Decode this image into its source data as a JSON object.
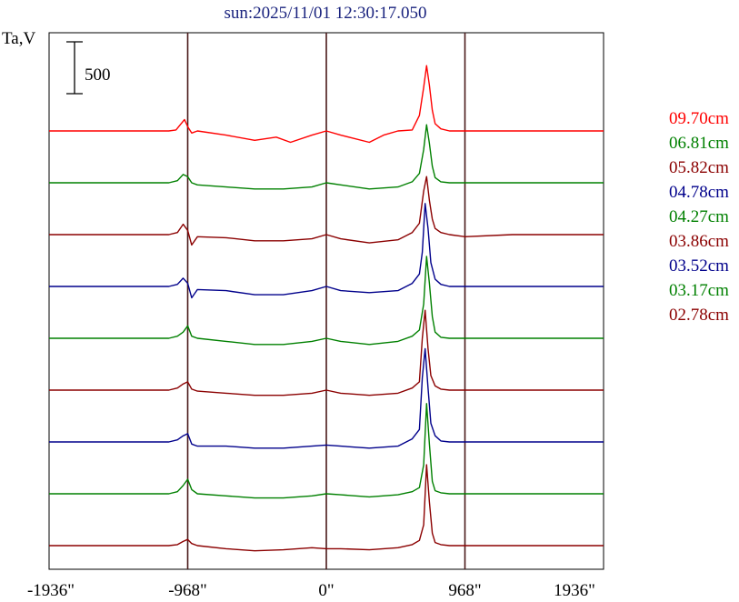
{
  "chart_data": {
    "type": "line",
    "title": "sun:2025/11/01 12:30:17.050",
    "ylabel": "Ta,V",
    "scale_bar_label": "500",
    "scale_bar_value": 500,
    "xlim": [
      -1936,
      1936
    ],
    "x_ticks": [
      {
        "value": -1936,
        "label": "-1936\""
      },
      {
        "value": -968,
        "label": "-968\""
      },
      {
        "value": 0,
        "label": "0\""
      },
      {
        "value": 968,
        "label": "968\""
      },
      {
        "value": 1936,
        "label": "1936\""
      }
    ],
    "vertical_lines": [
      -968,
      0,
      968
    ],
    "grid": false,
    "legend_position": "right",
    "series": [
      {
        "name": "09.70cm",
        "color": "#ff0000",
        "offset": 4000,
        "x": [
          -1936,
          -1100,
          -1050,
          -1020,
          -990,
          -968,
          -940,
          -900,
          -700,
          -500,
          -350,
          -250,
          -100,
          0,
          100,
          300,
          400,
          500,
          600,
          650,
          680,
          700,
          720,
          740,
          760,
          800,
          860,
          968,
          1300,
          1936
        ],
        "y": [
          0,
          0,
          10,
          60,
          110,
          40,
          -20,
          0,
          -40,
          -90,
          -60,
          -110,
          -40,
          0,
          -40,
          -110,
          -40,
          0,
          10,
          150,
          420,
          630,
          440,
          200,
          70,
          20,
          0,
          0,
          0,
          0
        ]
      },
      {
        "name": "06.81cm",
        "color": "#008000",
        "offset": 3500,
        "x": [
          -1936,
          -1100,
          -1040,
          -1000,
          -968,
          -940,
          -900,
          -700,
          -500,
          -300,
          -100,
          0,
          100,
          300,
          500,
          600,
          650,
          680,
          700,
          720,
          740,
          760,
          800,
          860,
          968,
          1300,
          1936
        ],
        "y": [
          0,
          0,
          20,
          80,
          60,
          0,
          -20,
          -40,
          -60,
          -60,
          -40,
          0,
          -20,
          -60,
          -40,
          10,
          90,
          320,
          560,
          380,
          160,
          50,
          10,
          0,
          0,
          0,
          0
        ]
      },
      {
        "name": "05.82cm",
        "color": "#8b0000",
        "offset": 3000,
        "x": [
          -1936,
          -1100,
          -1040,
          -1000,
          -968,
          -940,
          -900,
          -700,
          -500,
          -300,
          -100,
          0,
          100,
          300,
          500,
          600,
          650,
          680,
          700,
          720,
          740,
          760,
          800,
          860,
          968,
          1300,
          1936
        ],
        "y": [
          0,
          0,
          20,
          100,
          40,
          -100,
          -20,
          -30,
          -60,
          -60,
          -40,
          0,
          -40,
          -80,
          -50,
          20,
          110,
          420,
          560,
          330,
          150,
          60,
          20,
          0,
          -20,
          0,
          0
        ]
      },
      {
        "name": "04.78cm",
        "color": "#00008b",
        "offset": 2500,
        "x": [
          -1936,
          -1100,
          -1040,
          -1000,
          -968,
          -940,
          -900,
          -700,
          -500,
          -300,
          -100,
          0,
          100,
          300,
          500,
          600,
          650,
          670,
          690,
          710,
          730,
          760,
          800,
          860,
          968,
          1300,
          1936
        ],
        "y": [
          0,
          0,
          20,
          80,
          30,
          -110,
          -30,
          -40,
          -80,
          -80,
          -40,
          0,
          -40,
          -60,
          -40,
          30,
          120,
          330,
          800,
          560,
          230,
          70,
          20,
          0,
          0,
          0,
          0
        ]
      },
      {
        "name": "04.27cm",
        "color": "#008000",
        "offset": 2000,
        "x": [
          -1936,
          -1100,
          -1040,
          -1000,
          -968,
          -940,
          -900,
          -700,
          -500,
          -300,
          -100,
          0,
          100,
          300,
          500,
          600,
          650,
          680,
          700,
          720,
          740,
          760,
          800,
          860,
          968,
          1300,
          1936
        ],
        "y": [
          0,
          0,
          20,
          60,
          120,
          20,
          0,
          -30,
          -60,
          -60,
          -30,
          0,
          -30,
          -60,
          -30,
          20,
          80,
          330,
          790,
          530,
          210,
          60,
          10,
          0,
          0,
          0,
          0
        ]
      },
      {
        "name": "03.86cm",
        "color": "#8b0000",
        "offset": 1500,
        "x": [
          -1936,
          -1100,
          -1040,
          -1000,
          -968,
          -940,
          -900,
          -700,
          -500,
          -300,
          -100,
          0,
          100,
          300,
          500,
          600,
          650,
          670,
          690,
          710,
          730,
          760,
          800,
          860,
          968,
          1300,
          1936
        ],
        "y": [
          0,
          0,
          20,
          60,
          80,
          10,
          -10,
          -30,
          -50,
          -50,
          -30,
          0,
          -30,
          -50,
          -30,
          20,
          80,
          500,
          770,
          400,
          140,
          40,
          10,
          0,
          0,
          0,
          0
        ]
      },
      {
        "name": "03.52cm",
        "color": "#00008b",
        "offset": 1000,
        "x": [
          -1936,
          -1100,
          -1040,
          -1000,
          -968,
          -940,
          -900,
          -700,
          -500,
          -300,
          -100,
          0,
          100,
          300,
          500,
          600,
          650,
          670,
          690,
          710,
          730,
          760,
          800,
          860,
          968,
          1300,
          1936
        ],
        "y": [
          0,
          0,
          20,
          60,
          80,
          -20,
          -40,
          -40,
          -60,
          -60,
          -40,
          -30,
          -40,
          -60,
          -40,
          30,
          120,
          620,
          900,
          520,
          180,
          60,
          10,
          0,
          0,
          0,
          0
        ]
      },
      {
        "name": "03.17cm",
        "color": "#008000",
        "offset": 500,
        "x": [
          -1936,
          -1100,
          -1040,
          -1000,
          -968,
          -940,
          -900,
          -700,
          -500,
          -300,
          -100,
          0,
          100,
          300,
          500,
          600,
          650,
          680,
          700,
          720,
          740,
          760,
          800,
          860,
          968,
          1300,
          1936
        ],
        "y": [
          0,
          0,
          20,
          80,
          140,
          40,
          0,
          -20,
          -40,
          -40,
          -20,
          0,
          -10,
          -30,
          -10,
          20,
          60,
          280,
          870,
          480,
          120,
          30,
          10,
          0,
          0,
          0,
          0
        ]
      },
      {
        "name": "02.78cm",
        "color": "#8b0000",
        "offset": 0,
        "x": [
          -1936,
          -1100,
          -1040,
          -1000,
          -968,
          -940,
          -900,
          -700,
          -500,
          -300,
          -100,
          0,
          100,
          300,
          500,
          600,
          650,
          680,
          700,
          720,
          740,
          760,
          800,
          860,
          968,
          1300,
          1936
        ],
        "y": [
          0,
          0,
          10,
          40,
          60,
          20,
          0,
          -30,
          -50,
          -40,
          -20,
          -30,
          -30,
          -40,
          -20,
          10,
          50,
          200,
          780,
          420,
          120,
          30,
          10,
          0,
          0,
          0,
          0
        ]
      }
    ]
  }
}
